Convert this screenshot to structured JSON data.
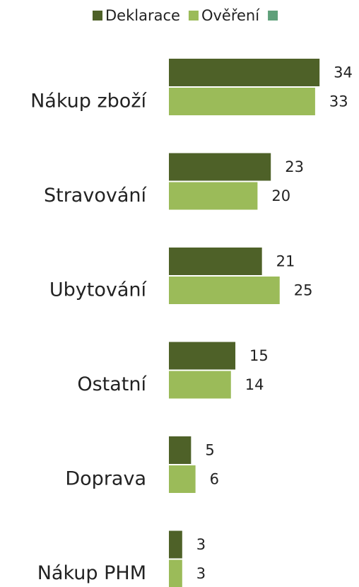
{
  "chart_data": {
    "type": "bar",
    "orientation": "horizontal",
    "categories": [
      "Nákup zboží",
      "Stravování",
      "Ubytování",
      "Ostatní",
      "Doprava",
      "Nákup PHM"
    ],
    "series": [
      {
        "name": "Deklarace",
        "color": "#4e6128",
        "values": [
          34,
          23,
          21,
          15,
          5,
          3
        ]
      },
      {
        "name": "Ověření",
        "color": "#9bbb59",
        "values": [
          33,
          20,
          25,
          14,
          6,
          3
        ]
      },
      {
        "name": null,
        "color": "#5fa07a",
        "values": [
          null,
          null,
          null,
          null,
          null,
          null
        ]
      }
    ],
    "legend": "top"
  }
}
